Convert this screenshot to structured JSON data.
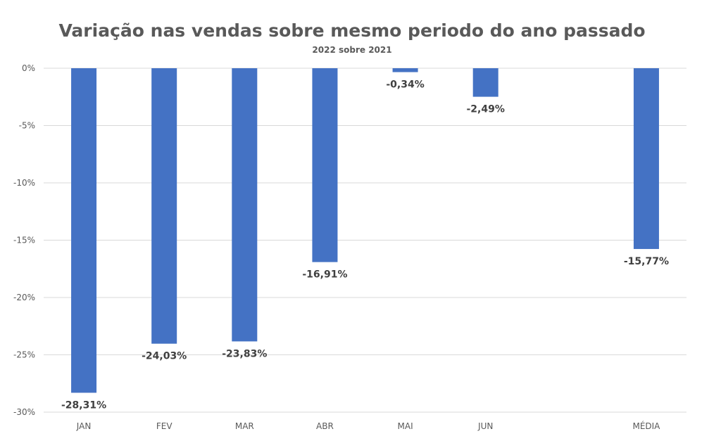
{
  "chart_data": {
    "type": "bar",
    "title": "Variação nas vendas sobre mesmo periodo do ano passado",
    "subtitle": "2022 sobre 2021",
    "categories": [
      "JAN",
      "FEV",
      "MAR",
      "ABR",
      "MAI",
      "JUN",
      "",
      "MÉDIA"
    ],
    "values": [
      -28.31,
      -24.03,
      -23.83,
      -16.91,
      -0.34,
      -2.49,
      null,
      -15.77
    ],
    "data_labels": [
      "-28,31%",
      "-24,03%",
      "-23,83%",
      "-16,91%",
      "-0,34%",
      "-2,49%",
      "",
      "-15,77%"
    ],
    "ylim": [
      -30,
      0
    ],
    "yticks": [
      0,
      -5,
      -10,
      -15,
      -20,
      -25,
      -30
    ],
    "ytick_labels": [
      "0%",
      "-5%",
      "-10%",
      "-15%",
      "-20%",
      "-25%",
      "-30%"
    ],
    "xlabel": "",
    "ylabel": "",
    "grid": true,
    "bar_color": "#4472c4"
  }
}
